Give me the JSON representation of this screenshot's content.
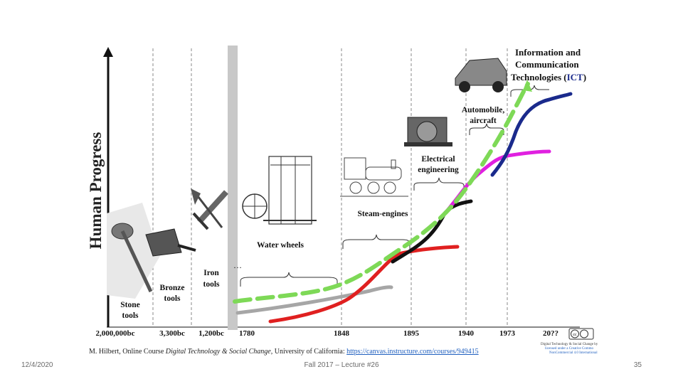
{
  "figure": {
    "yaxis_label": "Human Progress",
    "eras": {
      "stone": [
        "Stone",
        "tools"
      ],
      "bronze": [
        "Bronze",
        "tools"
      ],
      "iron": [
        "Iron",
        "tools"
      ],
      "water": "Water wheels",
      "steam": "Steam-engines",
      "electrical": [
        "Electrical",
        "engineering"
      ],
      "automobile": [
        "Automobile,",
        "aircraft"
      ],
      "ict": [
        "Information and",
        "Communication",
        "Technologies ("
      ],
      "ict_abbr": "ICT",
      "ict_close": ")"
    },
    "ellipsis": "…",
    "x_ticks": [
      "2,000,000bc",
      "3,300bc",
      "1,200bc",
      "1780",
      "1848",
      "1895",
      "1940",
      "1973",
      "20??"
    ],
    "source_prefix": "M. Hilbert, Online Course ",
    "source_course": "Digital Technology & Social Change",
    "source_org": ", University of California: ",
    "source_url": "https://canvas.instructure.com/courses/949415",
    "license_lines": [
      "Digital Technology & Social Change by",
      "licensed under a Creative Commo",
      "NonCommercial 4.0 International"
    ],
    "license_badge": "cc",
    "colors": {
      "gray": "#a6a6a6",
      "red": "#e02020",
      "black": "#111111",
      "magenta": "#e020e0",
      "navy": "#1a2a8c",
      "green": "#7ed957"
    }
  },
  "footer": {
    "date": "12/4/2020",
    "center": "Fall 2017 – Lecture #26",
    "page": "35"
  }
}
